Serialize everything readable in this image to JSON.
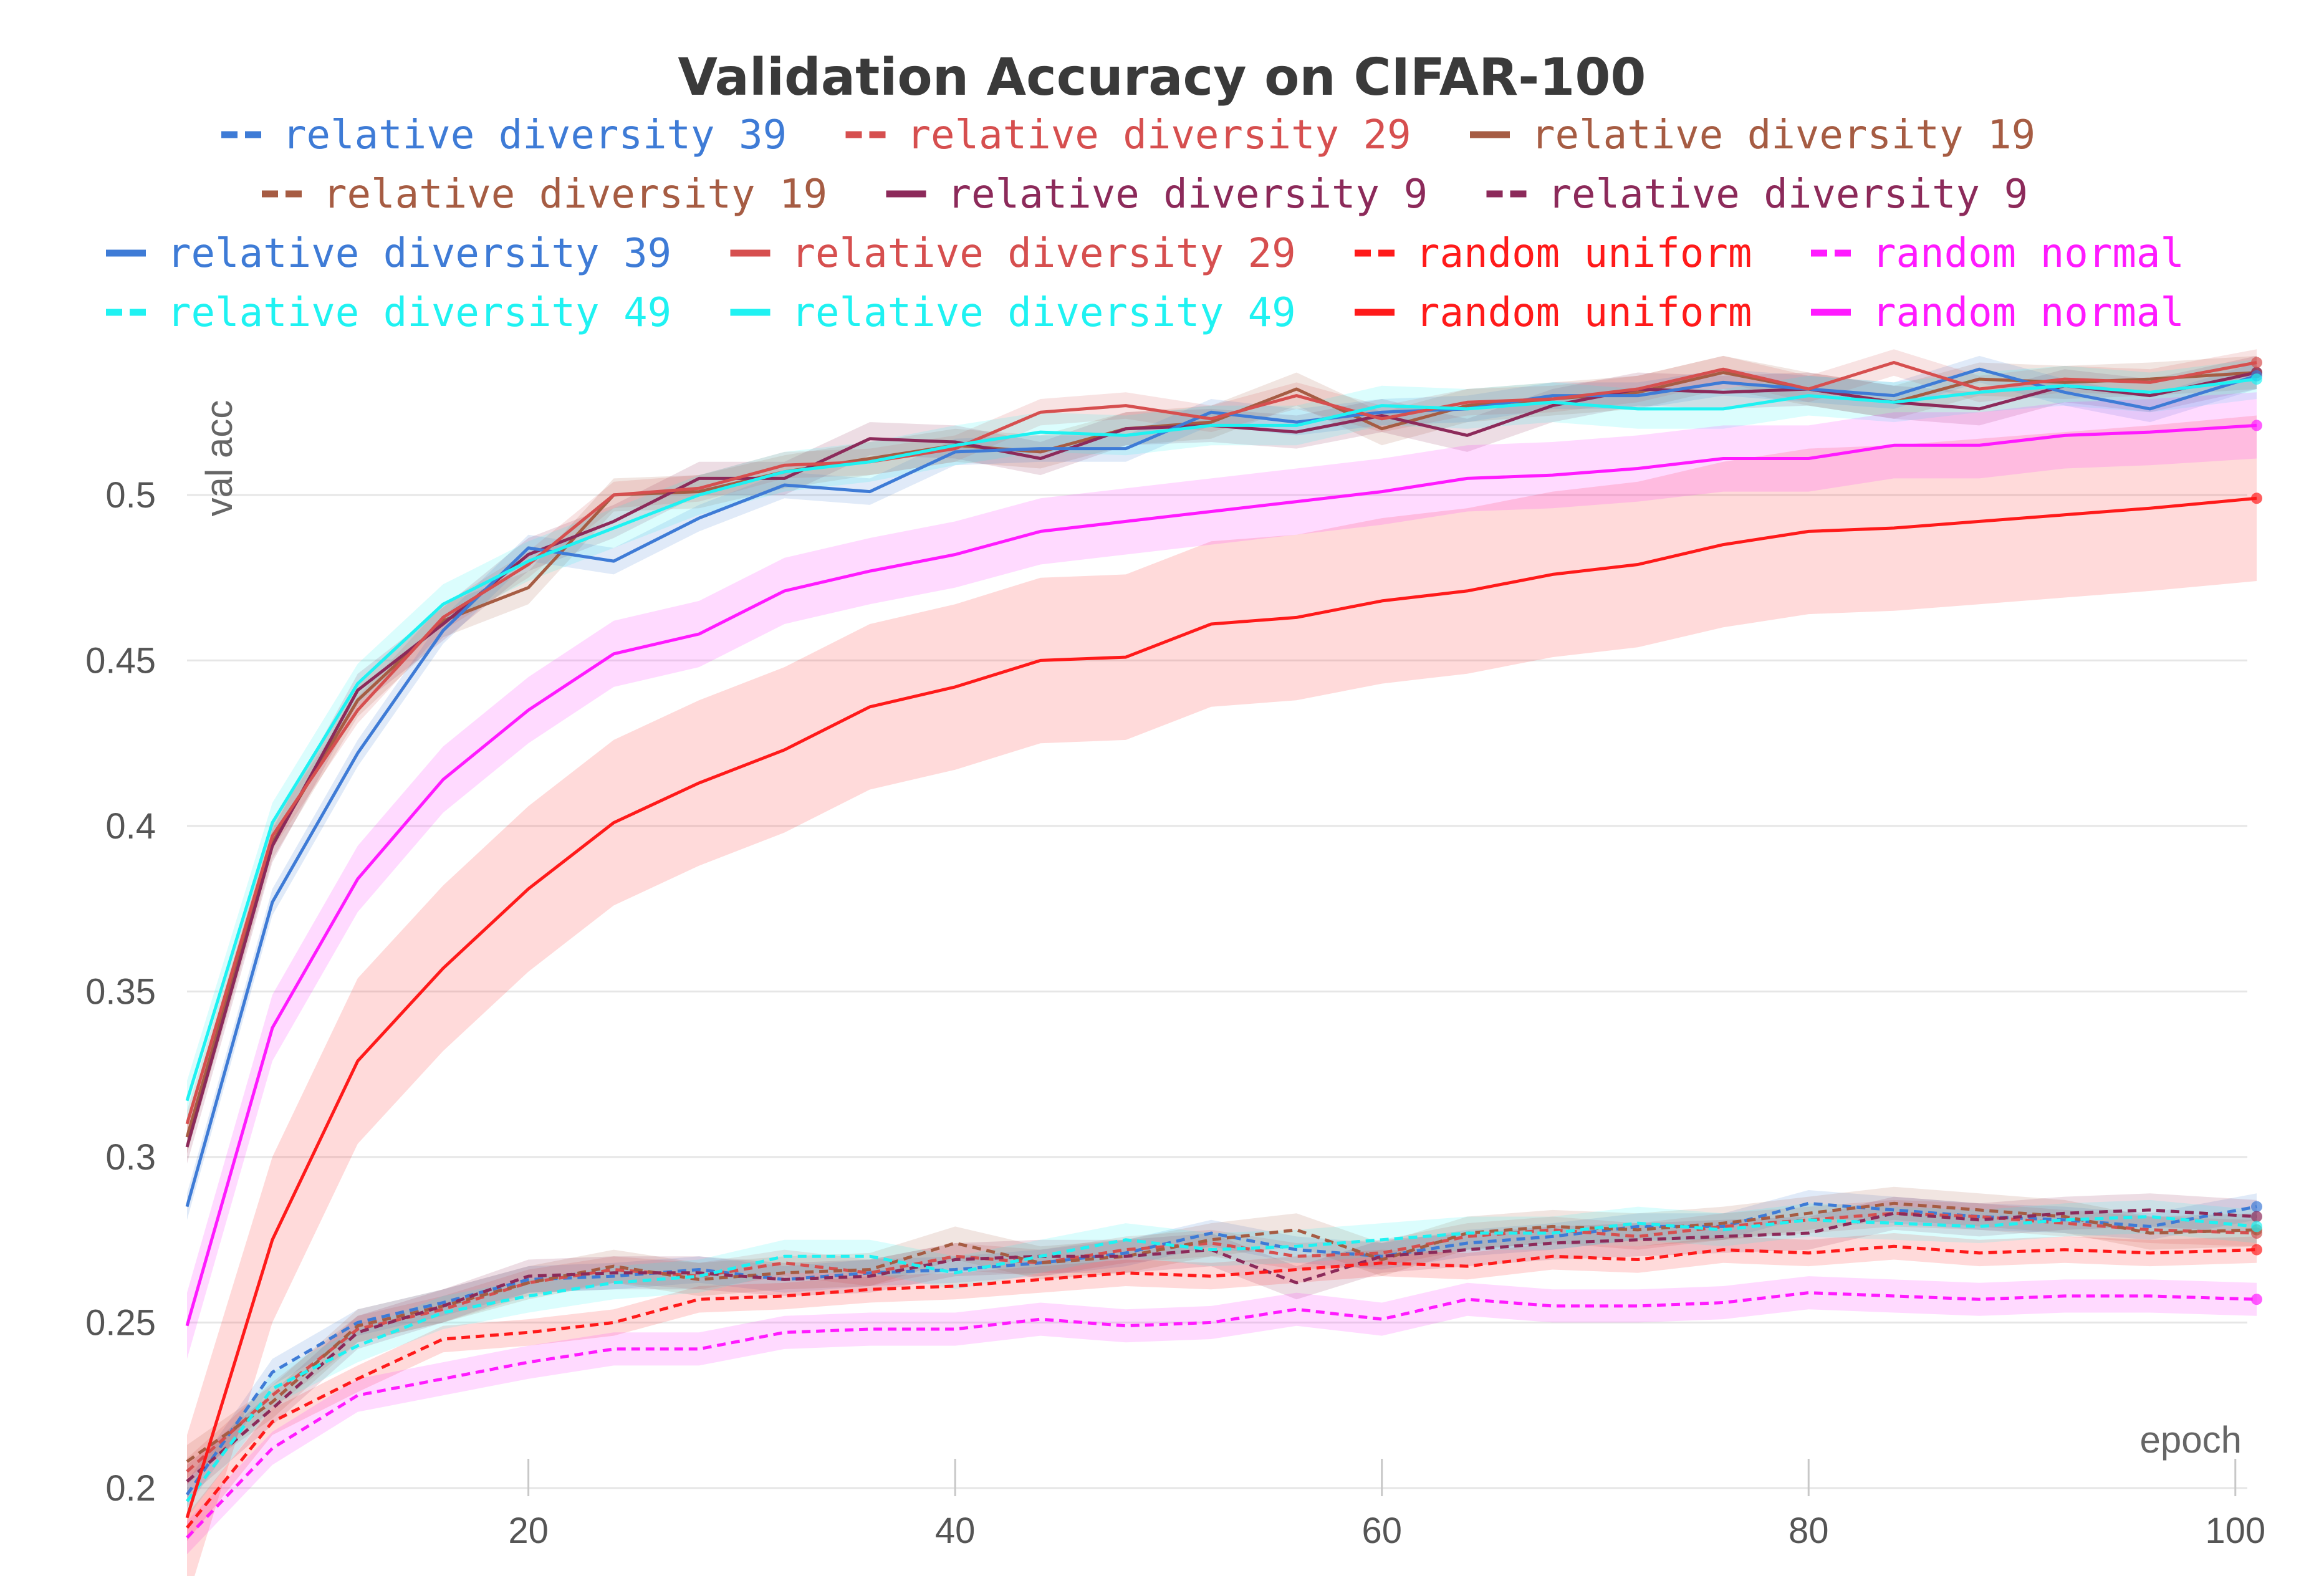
{
  "chart_data": {
    "type": "line",
    "title": "Validation Accuracy on CIFAR-100",
    "xlabel": "epoch",
    "ylabel": "val acc",
    "xlim": [
      4,
      101
    ],
    "ylim": [
      0.19,
      0.545
    ],
    "x_ticks": [
      {
        "value": 20,
        "label": "20"
      },
      {
        "value": 40,
        "label": "40"
      },
      {
        "value": 60,
        "label": "60"
      },
      {
        "value": 80,
        "label": "80"
      },
      {
        "value": 100,
        "label": "100"
      }
    ],
    "y_ticks": [
      {
        "value": 0.2,
        "label": "0.2"
      },
      {
        "value": 0.25,
        "label": "0.25"
      },
      {
        "value": 0.3,
        "label": "0.3"
      },
      {
        "value": 0.35,
        "label": "0.35"
      },
      {
        "value": 0.4,
        "label": "0.4"
      },
      {
        "value": 0.45,
        "label": "0.45"
      },
      {
        "value": 0.5,
        "label": "0.5"
      }
    ],
    "grid": true,
    "legend_position": "top",
    "x": [
      4,
      8,
      12,
      16,
      20,
      24,
      28,
      32,
      36,
      40,
      44,
      48,
      52,
      56,
      60,
      64,
      68,
      72,
      76,
      80,
      84,
      88,
      92,
      96,
      101
    ],
    "series": [
      {
        "name": "relative diversity 39",
        "color": "#3e7bd6",
        "style": "dashed",
        "band": 0.004,
        "values": [
          0.198,
          0.235,
          0.25,
          0.256,
          0.263,
          0.264,
          0.266,
          0.263,
          0.265,
          0.266,
          0.268,
          0.271,
          0.277,
          0.272,
          0.27,
          0.274,
          0.276,
          0.279,
          0.279,
          0.286,
          0.284,
          0.282,
          0.281,
          0.279,
          0.285
        ]
      },
      {
        "name": "relative diversity 29",
        "color": "#d64f4f",
        "style": "dashed",
        "band": 0.004,
        "values": [
          0.205,
          0.228,
          0.248,
          0.254,
          0.262,
          0.266,
          0.264,
          0.268,
          0.265,
          0.27,
          0.268,
          0.272,
          0.274,
          0.27,
          0.271,
          0.276,
          0.278,
          0.276,
          0.279,
          0.281,
          0.283,
          0.282,
          0.28,
          0.278,
          0.277
        ]
      },
      {
        "name": "relative diversity 19",
        "color": "#a65c43",
        "style": "solid",
        "band": 0.005,
        "values": [
          0.306,
          0.395,
          0.438,
          0.462,
          0.472,
          0.5,
          0.501,
          0.507,
          0.511,
          0.515,
          0.513,
          0.52,
          0.522,
          0.532,
          0.52,
          0.527,
          0.529,
          0.531,
          0.537,
          0.532,
          0.528,
          0.535,
          0.534,
          0.535,
          0.537
        ]
      },
      {
        "name": "relative diversity 19",
        "color": "#a65c43",
        "style": "dashed",
        "band": 0.005,
        "values": [
          0.208,
          0.226,
          0.249,
          0.255,
          0.262,
          0.267,
          0.263,
          0.265,
          0.266,
          0.274,
          0.268,
          0.27,
          0.275,
          0.278,
          0.269,
          0.277,
          0.279,
          0.278,
          0.28,
          0.283,
          0.286,
          0.284,
          0.282,
          0.277,
          0.278
        ]
      },
      {
        "name": "relative diversity 9",
        "color": "#8c2a5a",
        "style": "solid",
        "band": 0.005,
        "values": [
          0.303,
          0.394,
          0.441,
          0.461,
          0.482,
          0.492,
          0.505,
          0.505,
          0.517,
          0.516,
          0.511,
          0.52,
          0.521,
          0.519,
          0.524,
          0.518,
          0.527,
          0.532,
          0.531,
          0.532,
          0.528,
          0.526,
          0.533,
          0.53,
          0.537
        ]
      },
      {
        "name": "relative diversity 9",
        "color": "#8c2a5a",
        "style": "dashed",
        "band": 0.005,
        "values": [
          0.202,
          0.224,
          0.247,
          0.255,
          0.264,
          0.265,
          0.265,
          0.263,
          0.264,
          0.269,
          0.27,
          0.27,
          0.272,
          0.262,
          0.27,
          0.272,
          0.274,
          0.275,
          0.276,
          0.277,
          0.283,
          0.281,
          0.283,
          0.284,
          0.282
        ]
      },
      {
        "name": "relative diversity 39",
        "color": "#3e7bd6",
        "style": "solid",
        "band": 0.004,
        "values": [
          0.285,
          0.377,
          0.422,
          0.459,
          0.484,
          0.48,
          0.493,
          0.503,
          0.501,
          0.513,
          0.514,
          0.514,
          0.525,
          0.522,
          0.525,
          0.526,
          0.53,
          0.53,
          0.534,
          0.532,
          0.53,
          0.538,
          0.531,
          0.526,
          0.536
        ]
      },
      {
        "name": "relative diversity 29",
        "color": "#d64f4f",
        "style": "solid",
        "band": 0.004,
        "values": [
          0.31,
          0.397,
          0.435,
          0.463,
          0.479,
          0.5,
          0.502,
          0.509,
          0.51,
          0.514,
          0.525,
          0.527,
          0.523,
          0.53,
          0.523,
          0.528,
          0.529,
          0.532,
          0.538,
          0.532,
          0.54,
          0.532,
          0.535,
          0.534,
          0.54
        ]
      },
      {
        "name": "random uniform",
        "color": "#ff1a1a",
        "style": "dashed",
        "band": 0.004,
        "values": [
          0.188,
          0.22,
          0.233,
          0.245,
          0.247,
          0.25,
          0.257,
          0.258,
          0.26,
          0.261,
          0.263,
          0.265,
          0.264,
          0.266,
          0.268,
          0.267,
          0.27,
          0.269,
          0.272,
          0.271,
          0.273,
          0.271,
          0.272,
          0.271,
          0.272
        ]
      },
      {
        "name": "random normal",
        "color": "#ff1aff",
        "style": "dashed",
        "band": 0.005,
        "values": [
          0.185,
          0.212,
          0.228,
          0.233,
          0.238,
          0.242,
          0.242,
          0.247,
          0.248,
          0.248,
          0.251,
          0.249,
          0.25,
          0.254,
          0.251,
          0.257,
          0.255,
          0.255,
          0.256,
          0.259,
          0.258,
          0.257,
          0.258,
          0.258,
          0.257
        ]
      },
      {
        "name": "relative diversity 49",
        "color": "#1ff2f2",
        "style": "dashed",
        "band": 0.005,
        "values": [
          0.196,
          0.23,
          0.243,
          0.253,
          0.258,
          0.262,
          0.264,
          0.27,
          0.27,
          0.265,
          0.27,
          0.275,
          0.272,
          0.273,
          0.275,
          0.277,
          0.277,
          0.28,
          0.278,
          0.281,
          0.28,
          0.279,
          0.281,
          0.282,
          0.279
        ]
      },
      {
        "name": "relative diversity 49",
        "color": "#1ff2f2",
        "style": "solid",
        "band": 0.006,
        "values": [
          0.317,
          0.401,
          0.443,
          0.467,
          0.48,
          0.49,
          0.5,
          0.507,
          0.51,
          0.515,
          0.519,
          0.518,
          0.521,
          0.521,
          0.527,
          0.526,
          0.528,
          0.526,
          0.526,
          0.53,
          0.528,
          0.531,
          0.533,
          0.531,
          0.535
        ]
      },
      {
        "name": "random uniform",
        "color": "#ff1a1a",
        "style": "solid",
        "band": 0.025,
        "values": [
          0.191,
          0.275,
          0.329,
          0.357,
          0.381,
          0.401,
          0.413,
          0.423,
          0.436,
          0.442,
          0.45,
          0.451,
          0.461,
          0.463,
          0.468,
          0.471,
          0.476,
          0.479,
          0.485,
          0.489,
          0.49,
          0.492,
          0.494,
          0.496,
          0.499
        ]
      },
      {
        "name": "random normal",
        "color": "#ff1aff",
        "style": "solid",
        "band": 0.01,
        "values": [
          0.249,
          0.339,
          0.384,
          0.414,
          0.435,
          0.452,
          0.458,
          0.471,
          0.477,
          0.482,
          0.489,
          0.492,
          0.495,
          0.498,
          0.501,
          0.505,
          0.506,
          0.508,
          0.511,
          0.511,
          0.515,
          0.515,
          0.518,
          0.519,
          0.521
        ]
      }
    ],
    "legend_rows": [
      [
        {
          "label": "relative diversity 39",
          "color": "#3e7bd6",
          "style": "dashed"
        },
        {
          "label": "relative diversity 29",
          "color": "#d64f4f",
          "style": "dashed"
        },
        {
          "label": "relative diversity 19",
          "color": "#a65c43",
          "style": "solid"
        }
      ],
      [
        {
          "label": "relative diversity 19",
          "color": "#a65c43",
          "style": "dashed"
        },
        {
          "label": "relative diversity 9",
          "color": "#8c2a5a",
          "style": "solid"
        },
        {
          "label": "relative diversity 9",
          "color": "#8c2a5a",
          "style": "dashed"
        }
      ],
      [
        {
          "label": "relative diversity 39",
          "color": "#3e7bd6",
          "style": "solid"
        },
        {
          "label": "relative diversity 29",
          "color": "#d64f4f",
          "style": "solid"
        },
        {
          "label": "random uniform",
          "color": "#ff1a1a",
          "style": "dashed"
        },
        {
          "label": "random normal",
          "color": "#ff1aff",
          "style": "dashed"
        }
      ],
      [
        {
          "label": "relative diversity 49",
          "color": "#1ff2f2",
          "style": "dashed"
        },
        {
          "label": "relative diversity 49",
          "color": "#1ff2f2",
          "style": "solid"
        },
        {
          "label": "random uniform",
          "color": "#ff1a1a",
          "style": "solid"
        },
        {
          "label": "random normal",
          "color": "#ff1aff",
          "style": "solid"
        }
      ]
    ]
  }
}
